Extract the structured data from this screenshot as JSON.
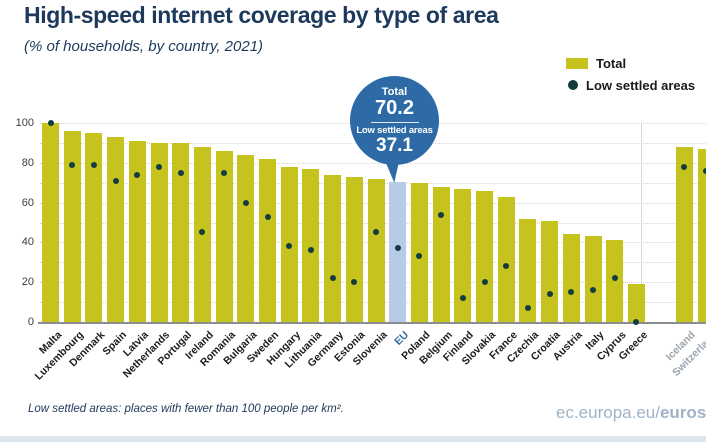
{
  "header": {
    "title": "High-speed internet coverage by type of area",
    "subtitle": "(% of households, by country, 2021)"
  },
  "legend": {
    "total_label": "Total",
    "low_label": "Low settled areas"
  },
  "callout": {
    "total_label": "Total",
    "total_value": "70.2",
    "low_label": "Low settled areas",
    "low_value": "37.1"
  },
  "footnote": "Low settled areas: places with fewer than 100 people per km².",
  "footer": {
    "prefix": "ec.europa.eu/",
    "bold": "eurostat"
  },
  "colors": {
    "bar": "#c6c31f",
    "eu_bar": "#b8cbe6",
    "dot": "#123c3e",
    "bubble": "#2e6ba6",
    "navy": "#1d3a5c",
    "eu_label": "#2e6ba6",
    "efta_label": "#9aa4ad",
    "grid": "#d4d4d4",
    "footer_text": "#9fb3c6"
  },
  "chart_data": {
    "type": "bar",
    "title": "High-speed internet coverage by type of area",
    "subtitle": "(% of households, by country, 2021)",
    "ylabel": "% of households",
    "ylim": [
      0,
      100
    ],
    "yticks": [
      0,
      20,
      40,
      60,
      80,
      100
    ],
    "grid": "horizontal dotted every 10",
    "legend_position": "top-right",
    "highlight_category": "EU",
    "separated_categories": [
      "Iceland",
      "Switzerland"
    ],
    "categories": [
      "Malta",
      "Luxembourg",
      "Denmark",
      "Spain",
      "Latvia",
      "Netherlands",
      "Portugal",
      "Ireland",
      "Romania",
      "Bulgaria",
      "Sweden",
      "Hungary",
      "Lithuania",
      "Germany",
      "Estonia",
      "Slovenia",
      "EU",
      "Poland",
      "Belgium",
      "Finland",
      "Slovakia",
      "France",
      "Czechia",
      "Croatia",
      "Austria",
      "Italy",
      "Cyprus",
      "Greece",
      "Iceland",
      "Switzerland"
    ],
    "series": [
      {
        "name": "Total",
        "style": "bar",
        "values": [
          100,
          96,
          95,
          93,
          91,
          90,
          90,
          88,
          86,
          84,
          82,
          78,
          77,
          74,
          73,
          72,
          70.2,
          70,
          68,
          67,
          66,
          63,
          52,
          51,
          44,
          43,
          41,
          19,
          88,
          87
        ]
      },
      {
        "name": "Low settled areas",
        "style": "dot",
        "values": [
          100,
          79,
          79,
          71,
          74,
          78,
          75,
          45,
          75,
          60,
          53,
          38,
          36,
          22,
          20,
          45,
          37.1,
          33,
          54,
          12,
          20,
          28,
          7,
          14,
          15,
          16,
          22,
          0,
          78,
          76
        ]
      }
    ]
  }
}
